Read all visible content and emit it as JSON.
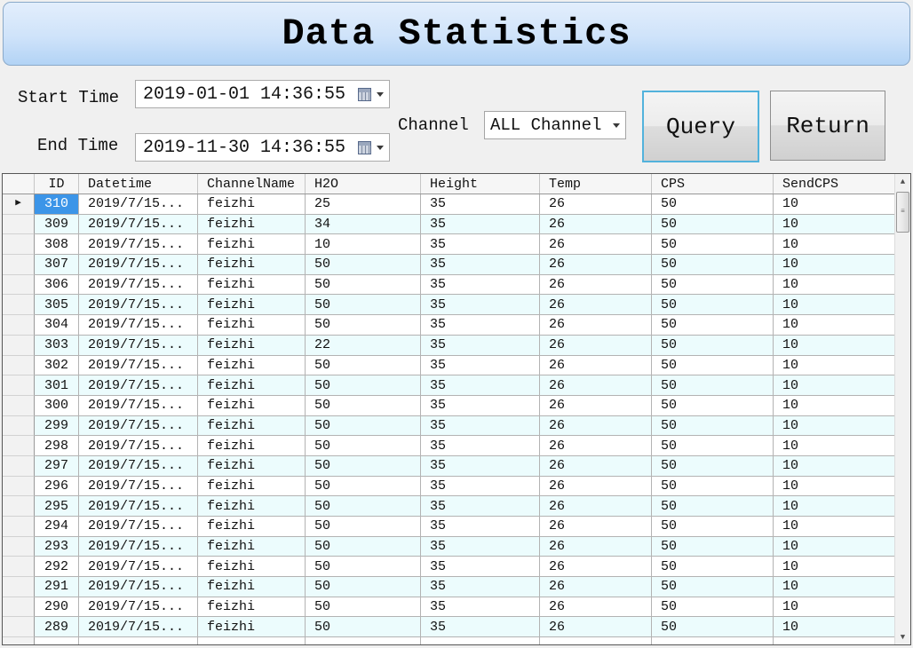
{
  "title": "Data Statistics",
  "filters": {
    "start_time_label": "Start Time",
    "start_time_value": "2019-01-01 14:36:55",
    "end_time_label": "End Time",
    "end_time_value": "2019-11-30 14:36:55",
    "channel_label": "Channel",
    "channel_value": "ALL Channel"
  },
  "buttons": {
    "query": "Query",
    "return": "Return"
  },
  "colors": {
    "banner_top": "#e3eefc",
    "banner_bottom": "#b2d3f5",
    "alt_row": "#ecfcfd",
    "selection": "#3c95e8",
    "query_border": "#52b2dc"
  },
  "grid": {
    "columns": [
      "ID",
      "Datetime",
      "ChannelName",
      "H2O",
      "Height",
      "Temp",
      "CPS",
      "SendCPS"
    ],
    "has_partial_bottom_row": true,
    "scrollbar": {
      "up_icon": "▲",
      "down_icon": "▼",
      "grip_icon": "≡"
    },
    "rows": [
      {
        "id": "310",
        "datetime": "2019/7/15...",
        "channel": "feizhi",
        "h2o": "25",
        "height": "35",
        "temp": "26",
        "cps": "50",
        "sendcps": "10",
        "selected": true
      },
      {
        "id": "309",
        "datetime": "2019/7/15...",
        "channel": "feizhi",
        "h2o": "34",
        "height": "35",
        "temp": "26",
        "cps": "50",
        "sendcps": "10",
        "selected": false
      },
      {
        "id": "308",
        "datetime": "2019/7/15...",
        "channel": "feizhi",
        "h2o": "10",
        "height": "35",
        "temp": "26",
        "cps": "50",
        "sendcps": "10",
        "selected": false
      },
      {
        "id": "307",
        "datetime": "2019/7/15...",
        "channel": "feizhi",
        "h2o": "50",
        "height": "35",
        "temp": "26",
        "cps": "50",
        "sendcps": "10",
        "selected": false
      },
      {
        "id": "306",
        "datetime": "2019/7/15...",
        "channel": "feizhi",
        "h2o": "50",
        "height": "35",
        "temp": "26",
        "cps": "50",
        "sendcps": "10",
        "selected": false
      },
      {
        "id": "305",
        "datetime": "2019/7/15...",
        "channel": "feizhi",
        "h2o": "50",
        "height": "35",
        "temp": "26",
        "cps": "50",
        "sendcps": "10",
        "selected": false
      },
      {
        "id": "304",
        "datetime": "2019/7/15...",
        "channel": "feizhi",
        "h2o": "50",
        "height": "35",
        "temp": "26",
        "cps": "50",
        "sendcps": "10",
        "selected": false
      },
      {
        "id": "303",
        "datetime": "2019/7/15...",
        "channel": "feizhi",
        "h2o": "22",
        "height": "35",
        "temp": "26",
        "cps": "50",
        "sendcps": "10",
        "selected": false
      },
      {
        "id": "302",
        "datetime": "2019/7/15...",
        "channel": "feizhi",
        "h2o": "50",
        "height": "35",
        "temp": "26",
        "cps": "50",
        "sendcps": "10",
        "selected": false
      },
      {
        "id": "301",
        "datetime": "2019/7/15...",
        "channel": "feizhi",
        "h2o": "50",
        "height": "35",
        "temp": "26",
        "cps": "50",
        "sendcps": "10",
        "selected": false
      },
      {
        "id": "300",
        "datetime": "2019/7/15...",
        "channel": "feizhi",
        "h2o": "50",
        "height": "35",
        "temp": "26",
        "cps": "50",
        "sendcps": "10",
        "selected": false
      },
      {
        "id": "299",
        "datetime": "2019/7/15...",
        "channel": "feizhi",
        "h2o": "50",
        "height": "35",
        "temp": "26",
        "cps": "50",
        "sendcps": "10",
        "selected": false
      },
      {
        "id": "298",
        "datetime": "2019/7/15...",
        "channel": "feizhi",
        "h2o": "50",
        "height": "35",
        "temp": "26",
        "cps": "50",
        "sendcps": "10",
        "selected": false
      },
      {
        "id": "297",
        "datetime": "2019/7/15...",
        "channel": "feizhi",
        "h2o": "50",
        "height": "35",
        "temp": "26",
        "cps": "50",
        "sendcps": "10",
        "selected": false
      },
      {
        "id": "296",
        "datetime": "2019/7/15...",
        "channel": "feizhi",
        "h2o": "50",
        "height": "35",
        "temp": "26",
        "cps": "50",
        "sendcps": "10",
        "selected": false
      },
      {
        "id": "295",
        "datetime": "2019/7/15...",
        "channel": "feizhi",
        "h2o": "50",
        "height": "35",
        "temp": "26",
        "cps": "50",
        "sendcps": "10",
        "selected": false
      },
      {
        "id": "294",
        "datetime": "2019/7/15...",
        "channel": "feizhi",
        "h2o": "50",
        "height": "35",
        "temp": "26",
        "cps": "50",
        "sendcps": "10",
        "selected": false
      },
      {
        "id": "293",
        "datetime": "2019/7/15...",
        "channel": "feizhi",
        "h2o": "50",
        "height": "35",
        "temp": "26",
        "cps": "50",
        "sendcps": "10",
        "selected": false
      },
      {
        "id": "292",
        "datetime": "2019/7/15...",
        "channel": "feizhi",
        "h2o": "50",
        "height": "35",
        "temp": "26",
        "cps": "50",
        "sendcps": "10",
        "selected": false
      },
      {
        "id": "291",
        "datetime": "2019/7/15...",
        "channel": "feizhi",
        "h2o": "50",
        "height": "35",
        "temp": "26",
        "cps": "50",
        "sendcps": "10",
        "selected": false
      },
      {
        "id": "290",
        "datetime": "2019/7/15...",
        "channel": "feizhi",
        "h2o": "50",
        "height": "35",
        "temp": "26",
        "cps": "50",
        "sendcps": "10",
        "selected": false
      },
      {
        "id": "289",
        "datetime": "2019/7/15...",
        "channel": "feizhi",
        "h2o": "50",
        "height": "35",
        "temp": "26",
        "cps": "50",
        "sendcps": "10",
        "selected": false
      }
    ]
  }
}
